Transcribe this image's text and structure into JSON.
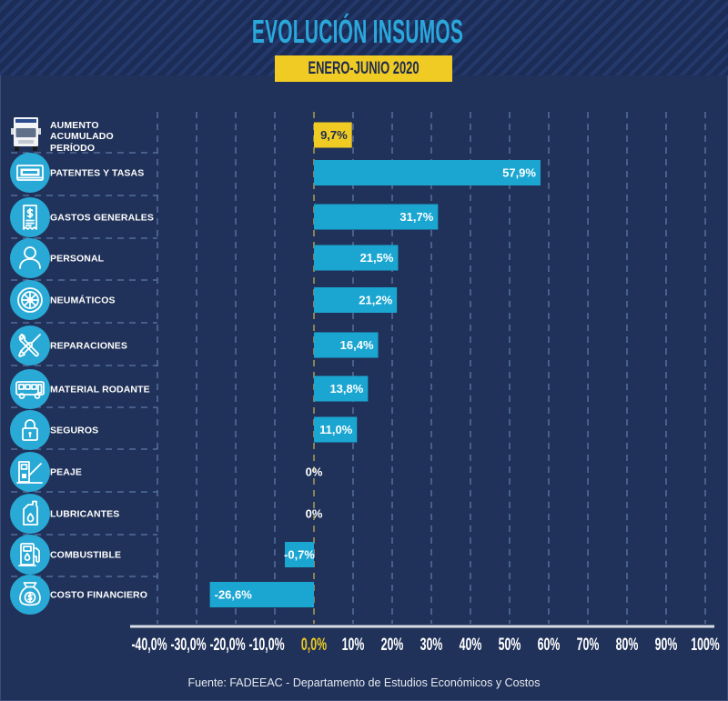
{
  "header": {
    "title": "EVOLUCIÓN INSUMOS",
    "period": "ENERO-JUNIO 2020"
  },
  "footer": {
    "source": "Fuente: FADEEAC - Departamento de Estudios Económicos y Costos"
  },
  "colors": {
    "background": "#203259",
    "title": "#2aa8dc",
    "highlight": "#f0cb24",
    "highlight_text": "#1d2b4f",
    "bar": "#1ba6d2",
    "icon_circle": "#29a9d6",
    "grid": "#5d79a8",
    "zero_line": "#c2ab4f",
    "axis": "#d9dde6",
    "label_text": "#ffffff"
  },
  "chart_data": {
    "type": "bar",
    "orientation": "horizontal",
    "title": "EVOLUCIÓN INSUMOS",
    "subtitle": "ENERO-JUNIO 2020",
    "xlabel": "",
    "ylabel": "",
    "xlim": [
      -40,
      100
    ],
    "grid": true,
    "legend": "none",
    "xticks": [
      -40,
      -30,
      -20,
      -10,
      0,
      10,
      20,
      30,
      40,
      50,
      60,
      70,
      80,
      90,
      100
    ],
    "xtick_labels": [
      "-40,0%",
      "-30,0%",
      "-20,0%",
      "-10,0%",
      "0,0%",
      "10%",
      "20%",
      "30%",
      "40%",
      "50%",
      "60%",
      "70%",
      "80%",
      "90%",
      "100%"
    ],
    "highlight_tick_index": 4,
    "categories": [
      "AUMENTO\nACUMULADO PERÍODO",
      "PATENTES Y TASAS",
      "GASTOS GENERALES",
      "PERSONAL",
      "NEUMÁTICOS",
      "REPARACIONES",
      "MATERIAL RODANTE",
      "SEGUROS",
      "PEAJE",
      "LUBRICANTES",
      "COMBUSTIBLE",
      "COSTO FINANCIERO"
    ],
    "values": [
      9.7,
      57.9,
      31.7,
      21.5,
      21.2,
      16.4,
      13.8,
      11.0,
      0,
      0,
      -0.7,
      -26.6
    ],
    "value_labels": [
      "9,7%",
      "57,9%",
      "31,7%",
      "21,5%",
      "21,2%",
      "16,4%",
      "13,8%",
      "11,0%",
      "0%",
      "0%",
      "-0,7%",
      "-26,6%"
    ],
    "icons": [
      "truck-icon",
      "license-plate-icon",
      "receipt-icon",
      "person-icon",
      "tire-icon",
      "tools-icon",
      "bus-icon",
      "lock-icon",
      "toll-booth-icon",
      "oil-bottle-icon",
      "fuel-pump-icon",
      "money-bag-icon"
    ],
    "highlight_index": 0,
    "source": "Fuente: FADEEAC - Departamento de Estudios Económicos y Costos"
  }
}
